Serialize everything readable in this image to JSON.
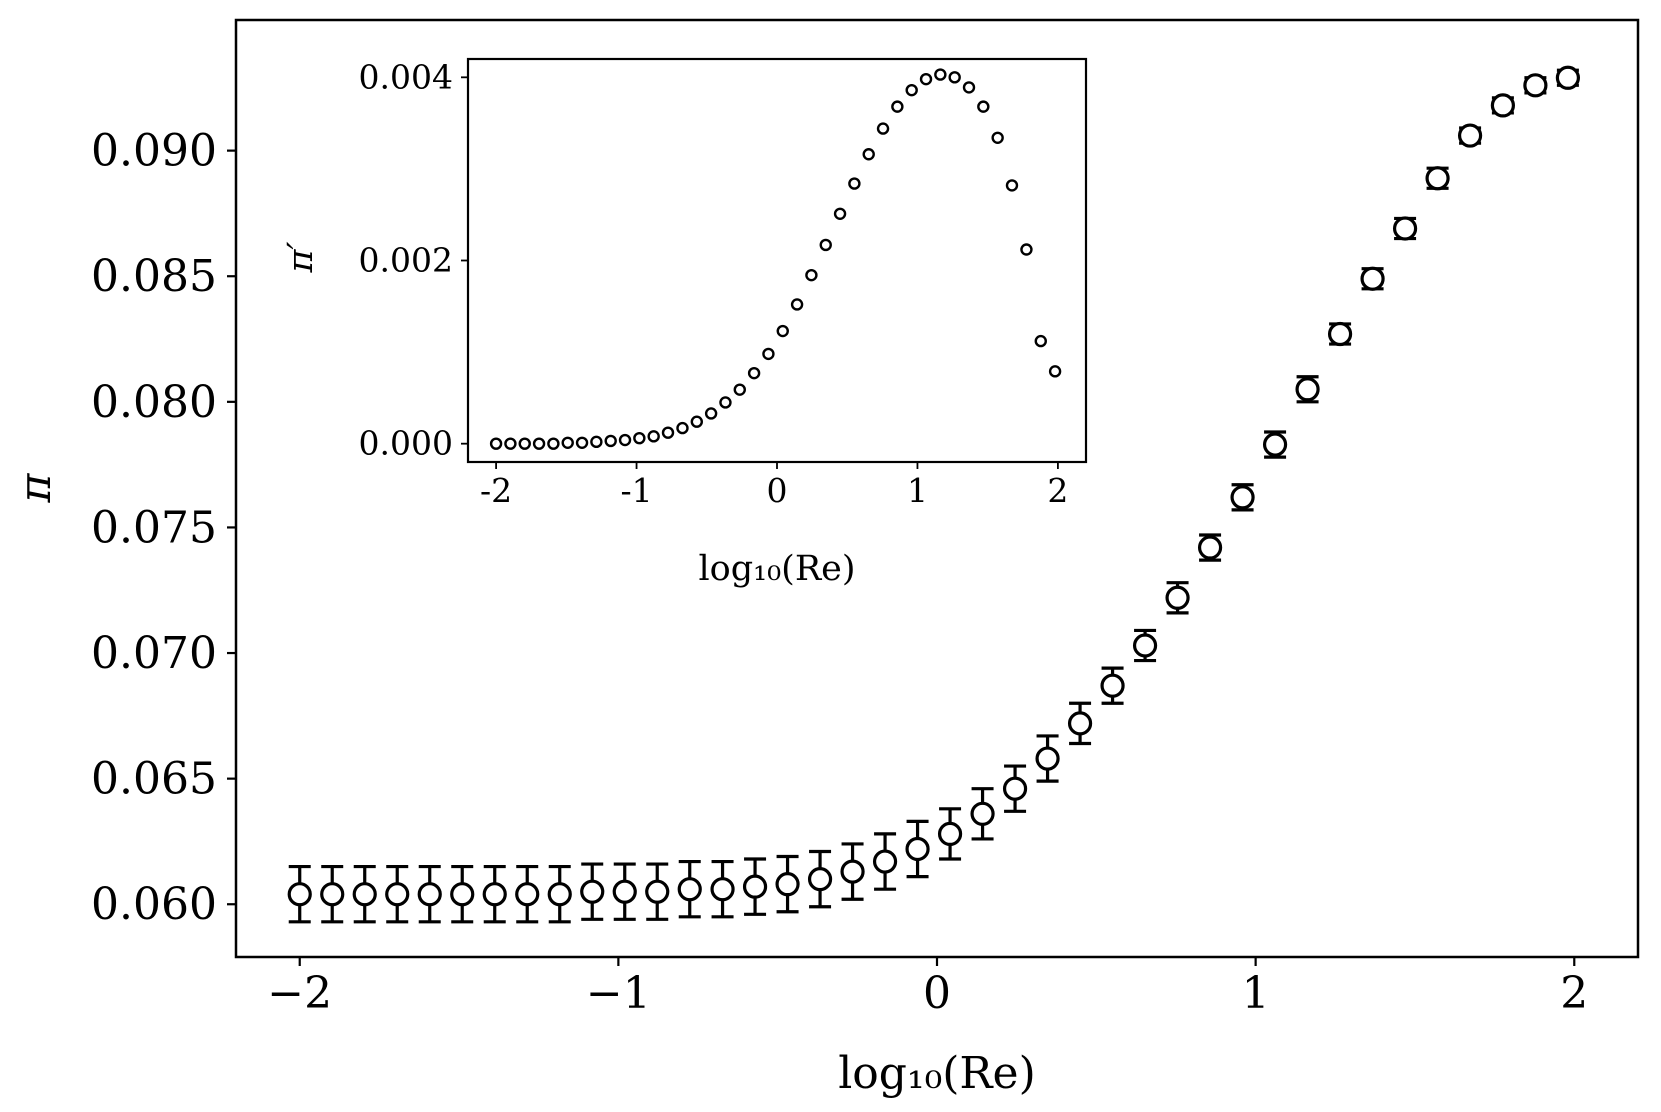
{
  "chart_data": [
    {
      "type": "scatter",
      "title": "",
      "xlabel": "log₁₀(Re)",
      "ylabel": "π",
      "xlim": [
        -2.2,
        2.2
      ],
      "ylim": [
        0.0579,
        0.0952
      ],
      "xticks": [
        -2,
        -1,
        0,
        1,
        2
      ],
      "xtick_labels": [
        "−2",
        "−1",
        "0",
        "1",
        "2"
      ],
      "yticks": [
        0.06,
        0.065,
        0.07,
        0.075,
        0.08,
        0.085,
        0.09
      ],
      "ytick_labels": [
        "0.060",
        "0.065",
        "0.070",
        "0.075",
        "0.080",
        "0.085",
        "0.090"
      ],
      "grid": false,
      "marker": "open-circle",
      "error_bars": true,
      "x": [
        -2.0,
        -1.898,
        -1.796,
        -1.694,
        -1.592,
        -1.49,
        -1.388,
        -1.286,
        -1.184,
        -1.082,
        -0.98,
        -0.878,
        -0.776,
        -0.673,
        -0.571,
        -0.469,
        -0.367,
        -0.265,
        -0.163,
        -0.061,
        0.041,
        0.143,
        0.245,
        0.347,
        0.449,
        0.551,
        0.653,
        0.755,
        0.857,
        0.959,
        1.061,
        1.163,
        1.265,
        1.367,
        1.469,
        1.571,
        1.673,
        1.776,
        1.878,
        1.98
      ],
      "y": [
        0.0604,
        0.0604,
        0.0604,
        0.0604,
        0.0604,
        0.0604,
        0.0604,
        0.0604,
        0.0604,
        0.0605,
        0.0605,
        0.0605,
        0.0606,
        0.0606,
        0.0607,
        0.0608,
        0.061,
        0.0613,
        0.0617,
        0.0622,
        0.0628,
        0.0636,
        0.0646,
        0.0658,
        0.0672,
        0.0687,
        0.0703,
        0.0722,
        0.0742,
        0.0762,
        0.0783,
        0.0805,
        0.0827,
        0.0849,
        0.0869,
        0.0889,
        0.0906,
        0.0918,
        0.0926,
        0.0929
      ],
      "yerr": [
        0.0011,
        0.0011,
        0.0011,
        0.0011,
        0.0011,
        0.0011,
        0.0011,
        0.0011,
        0.0011,
        0.0011,
        0.0011,
        0.0011,
        0.0011,
        0.0011,
        0.0011,
        0.0011,
        0.0011,
        0.0011,
        0.0011,
        0.0011,
        0.001,
        0.001,
        0.0009,
        0.0009,
        0.0008,
        0.0007,
        0.0006,
        0.0006,
        0.0005,
        0.0005,
        0.0005,
        0.0005,
        0.0004,
        0.0004,
        0.0004,
        0.0004,
        0.0003,
        0.0003,
        0.0003,
        0.0003
      ]
    },
    {
      "type": "scatter",
      "title": "",
      "xlabel": "log₁₀(Re)",
      "ylabel": "π′",
      "xlim": [
        -2.2,
        2.2
      ],
      "ylim": [
        -0.0002,
        0.0042
      ],
      "xticks": [
        -2,
        -1,
        0,
        1,
        2
      ],
      "xtick_labels": [
        "-2",
        "-1",
        "0",
        "1",
        "2"
      ],
      "yticks": [
        0.0,
        0.002,
        0.004
      ],
      "ytick_labels": [
        "0.000",
        "0.002",
        "0.004"
      ],
      "grid": false,
      "marker": "open-circle",
      "x": [
        -2.0,
        -1.898,
        -1.796,
        -1.694,
        -1.592,
        -1.49,
        -1.388,
        -1.286,
        -1.184,
        -1.082,
        -0.98,
        -0.878,
        -0.776,
        -0.673,
        -0.571,
        -0.469,
        -0.367,
        -0.265,
        -0.163,
        -0.061,
        0.041,
        0.143,
        0.245,
        0.347,
        0.449,
        0.551,
        0.653,
        0.755,
        0.857,
        0.959,
        1.061,
        1.163,
        1.265,
        1.367,
        1.469,
        1.571,
        1.673,
        1.776,
        1.878,
        1.98
      ],
      "y": [
        0.0,
        0.0,
        0.0,
        0.0,
        0.0,
        1e-05,
        1e-05,
        2e-05,
        3e-05,
        4e-05,
        6e-05,
        8e-05,
        0.00012,
        0.00017,
        0.00024,
        0.00033,
        0.00045,
        0.00059,
        0.00077,
        0.00098,
        0.00123,
        0.00152,
        0.00184,
        0.00217,
        0.00251,
        0.00284,
        0.00316,
        0.00344,
        0.00368,
        0.00386,
        0.00398,
        0.00403,
        0.004,
        0.00389,
        0.00368,
        0.00334,
        0.00282,
        0.00212,
        0.00112,
        0.00079
      ]
    }
  ]
}
